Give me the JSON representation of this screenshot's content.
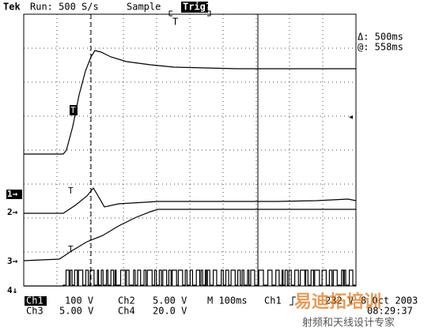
{
  "header": {
    "brand": "Tek",
    "status": "Run: 500 S/s",
    "mode": "Sample",
    "trigger": "Trig?"
  },
  "cursor_readout": {
    "delta": "Δ: 500ms",
    "at": "@: 558ms"
  },
  "channel_markers": [
    "1→",
    "2→",
    "3→",
    "4↓"
  ],
  "trigger_markers": [
    "T",
    "T",
    "T",
    "T"
  ],
  "footer": {
    "row1": [
      "Ch1",
      "100 V",
      "Ch2",
      "5.00 V",
      "M 100ms",
      "Ch1",
      "232 V",
      "8 Oct 2003"
    ],
    "row2": [
      "Ch3",
      "5.00 V",
      "Ch4",
      "20.0 V",
      "08:29:37"
    ]
  },
  "watermark": [
    "易迪拓培训",
    "射频和天线设计专家"
  ]
}
